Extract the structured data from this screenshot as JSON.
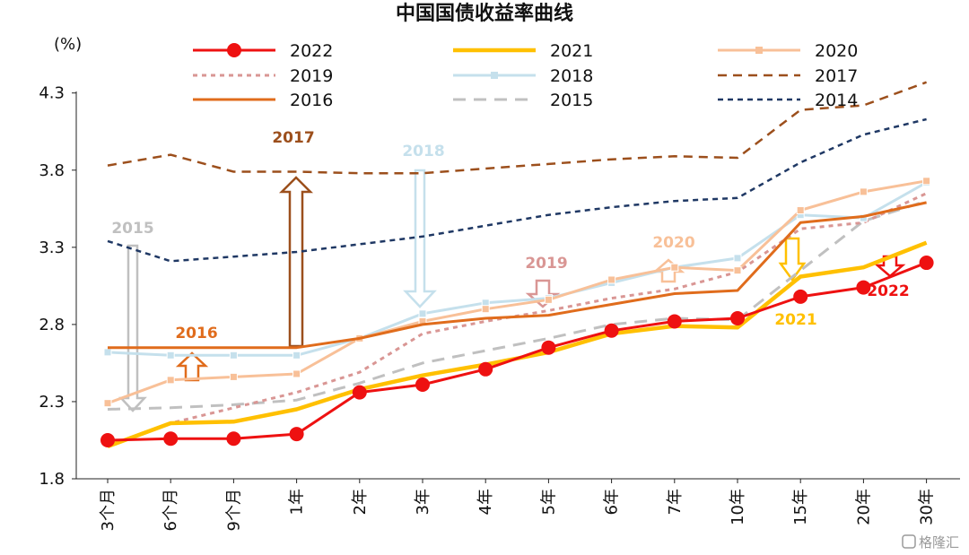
{
  "chart_data": {
    "type": "line",
    "title": "中国国债收益率曲线",
    "ylabel": "(%)",
    "xlabel": "",
    "ylim": [
      1.8,
      4.4
    ],
    "yticks": [
      "1.8",
      "2.3",
      "2.8",
      "3.3",
      "3.8",
      "4.3"
    ],
    "ytick_values": [
      1.8,
      2.3,
      2.8,
      3.3,
      3.8,
      4.3
    ],
    "categories": [
      "3个月",
      "6个月",
      "9个月",
      "1年",
      "2年",
      "3年",
      "4年",
      "5年",
      "6年",
      "7年",
      "10年",
      "15年",
      "20年",
      "30年"
    ],
    "grid": false,
    "legend_position": "top",
    "series": [
      {
        "name": "2022",
        "color": "#ee1111",
        "style": "solid-dot",
        "values": [
          2.05,
          2.06,
          2.06,
          2.09,
          2.36,
          2.41,
          2.51,
          2.65,
          2.76,
          2.82,
          2.84,
          2.98,
          3.04,
          3.2
        ]
      },
      {
        "name": "2021",
        "color": "#ffc000",
        "style": "solid-thick",
        "values": [
          2.01,
          2.16,
          2.17,
          2.25,
          2.38,
          2.47,
          2.54,
          2.62,
          2.74,
          2.79,
          2.78,
          3.11,
          3.17,
          3.33
        ]
      },
      {
        "name": "2020",
        "color": "#f8c098",
        "style": "solid-square",
        "values": [
          2.29,
          2.44,
          2.46,
          2.48,
          2.71,
          2.82,
          2.9,
          2.96,
          3.09,
          3.17,
          3.15,
          3.54,
          3.66,
          3.73
        ]
      },
      {
        "name": "2019",
        "color": "#d99694",
        "style": "dotted",
        "values": [
          2.01,
          2.16,
          2.26,
          2.36,
          2.49,
          2.74,
          2.82,
          2.89,
          2.97,
          3.03,
          3.14,
          3.42,
          3.46,
          3.65
        ]
      },
      {
        "name": "2018",
        "color": "#c5e0ec",
        "style": "solid-square",
        "values": [
          2.62,
          2.6,
          2.6,
          2.6,
          2.71,
          2.87,
          2.94,
          2.97,
          3.07,
          3.17,
          3.23,
          3.51,
          3.49,
          3.72
        ]
      },
      {
        "name": "2017",
        "color": "#9c4f1c",
        "style": "dash",
        "values": [
          3.83,
          3.9,
          3.79,
          3.79,
          3.78,
          3.78,
          3.81,
          3.84,
          3.87,
          3.89,
          3.88,
          4.19,
          4.22,
          4.37
        ]
      },
      {
        "name": "2016",
        "color": "#e06c1c",
        "style": "solid",
        "values": [
          2.65,
          2.65,
          2.65,
          2.65,
          2.71,
          2.8,
          2.84,
          2.86,
          2.93,
          3.0,
          3.02,
          3.46,
          3.5,
          3.59
        ]
      },
      {
        "name": "2015",
        "color": "#c0c0c0",
        "style": "dash-long",
        "values": [
          2.25,
          2.26,
          2.28,
          2.31,
          2.42,
          2.55,
          2.63,
          2.71,
          2.8,
          2.84,
          2.83,
          3.15,
          3.47,
          3.6
        ]
      },
      {
        "name": "2014",
        "color": "#1f3864",
        "style": "dash-short",
        "values": [
          3.34,
          3.21,
          3.24,
          3.27,
          3.32,
          3.37,
          3.44,
          3.51,
          3.56,
          3.6,
          3.62,
          3.85,
          4.03,
          4.13
        ]
      }
    ],
    "annotations": [
      {
        "label": "2017",
        "color": "#9c4f1c"
      },
      {
        "label": "2018",
        "color": "#c5e0ec"
      },
      {
        "label": "2015",
        "color": "#c0c0c0"
      },
      {
        "label": "2016",
        "color": "#e06c1c"
      },
      {
        "label": "2019",
        "color": "#d99694"
      },
      {
        "label": "2020",
        "color": "#f8c098"
      },
      {
        "label": "2021",
        "color": "#ffc000"
      },
      {
        "label": "2022",
        "color": "#ee1111"
      }
    ]
  },
  "watermark": "格隆汇"
}
